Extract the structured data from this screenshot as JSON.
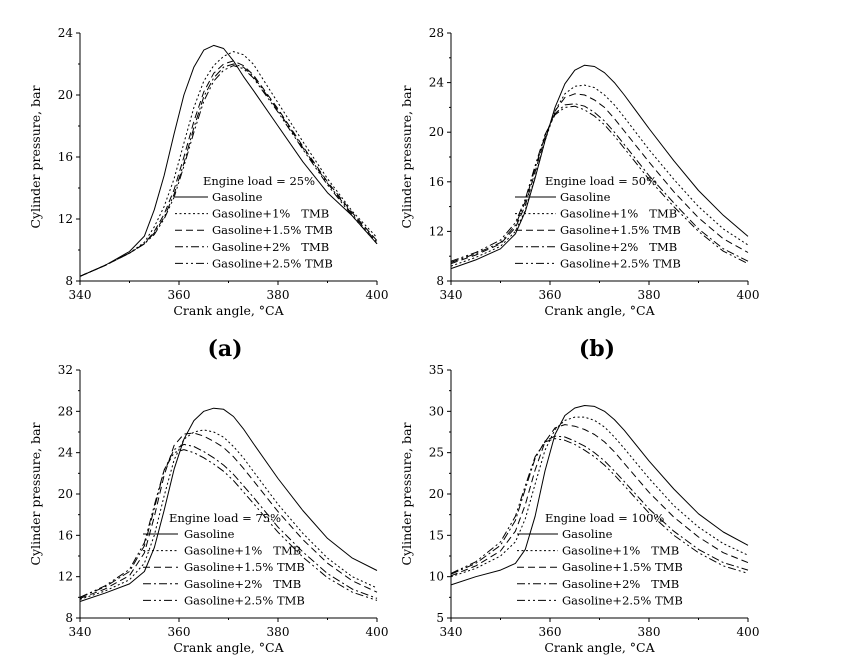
{
  "chart_data": [
    {
      "type": "line",
      "panel_label": "(a)",
      "xlabel": "Crank angle, °CA",
      "ylabel": "Cylinder pressure, bar",
      "xlim": [
        340,
        400
      ],
      "ylim": [
        8,
        24
      ],
      "xticks": [
        340,
        360,
        380,
        400
      ],
      "yticks": [
        8,
        12,
        16,
        20,
        24
      ],
      "legend_title": "Engine load = 25%",
      "legend_placement": "center",
      "grid": false,
      "series": [
        {
          "name": "Gasoline",
          "dash": "solid",
          "x": [
            340,
            345,
            350,
            353,
            355,
            357,
            359,
            361,
            363,
            365,
            367,
            369,
            371,
            373,
            375,
            380,
            385,
            390,
            395,
            400
          ],
          "y": [
            8.3,
            9.0,
            9.9,
            10.9,
            12.6,
            14.8,
            17.5,
            20.0,
            21.8,
            22.9,
            23.2,
            23.0,
            22.2,
            21.2,
            20.3,
            18.0,
            15.7,
            13.7,
            12.2,
            10.4
          ]
        },
        {
          "name": "Gasoline+1%   TMB",
          "dash": "dot",
          "x": [
            340,
            345,
            350,
            353,
            355,
            357,
            359,
            361,
            363,
            365,
            367,
            369,
            371,
            373,
            375,
            380,
            385,
            390,
            395,
            400
          ],
          "y": [
            8.3,
            9.0,
            9.8,
            10.5,
            11.5,
            12.8,
            14.6,
            16.9,
            19.2,
            20.9,
            21.9,
            22.5,
            22.8,
            22.6,
            22.0,
            19.5,
            17.0,
            14.6,
            12.5,
            10.8
          ]
        },
        {
          "name": "Gasoline+1.5% TMB",
          "dash": "dash",
          "x": [
            340,
            345,
            350,
            353,
            355,
            357,
            359,
            361,
            363,
            365,
            367,
            369,
            371,
            373,
            375,
            380,
            385,
            390,
            395,
            400
          ],
          "y": [
            8.3,
            9.0,
            9.8,
            10.4,
            11.2,
            12.3,
            13.9,
            16.0,
            18.3,
            20.2,
            21.4,
            22.0,
            22.2,
            21.9,
            21.3,
            19.1,
            16.7,
            14.4,
            12.4,
            10.6
          ]
        },
        {
          "name": "Gasoline+2%   TMB",
          "dash": "dashdot",
          "x": [
            340,
            345,
            350,
            353,
            355,
            357,
            359,
            361,
            363,
            365,
            367,
            369,
            371,
            373,
            375,
            380,
            385,
            390,
            395,
            400
          ],
          "y": [
            8.3,
            9.0,
            9.8,
            10.4,
            11.1,
            12.1,
            13.6,
            15.6,
            17.9,
            19.9,
            21.1,
            21.8,
            22.0,
            21.8,
            21.2,
            19.0,
            16.6,
            14.3,
            12.3,
            10.5
          ]
        },
        {
          "name": "Gasoline+2.5% TMB",
          "dash": "dashdotdot",
          "x": [
            340,
            345,
            350,
            353,
            355,
            357,
            359,
            361,
            363,
            365,
            367,
            369,
            371,
            373,
            375,
            380,
            385,
            390,
            395,
            400
          ],
          "y": [
            8.3,
            9.0,
            9.8,
            10.4,
            11.0,
            12.0,
            13.4,
            15.4,
            17.6,
            19.6,
            20.9,
            21.6,
            21.9,
            21.7,
            21.1,
            18.9,
            16.5,
            14.2,
            12.2,
            10.4
          ]
        }
      ]
    },
    {
      "type": "line",
      "panel_label": "(b)",
      "xlabel": "Crank angle, °CA",
      "ylabel": "Cylinder pressure, bar",
      "xlim": [
        340,
        400
      ],
      "ylim": [
        8,
        28
      ],
      "xticks": [
        340,
        360,
        380,
        400
      ],
      "yticks": [
        8,
        12,
        16,
        20,
        24,
        28
      ],
      "legend_title": "Engine load = 50%",
      "legend_placement": "center",
      "grid": false,
      "series": [
        {
          "name": "Gasoline",
          "dash": "solid",
          "x": [
            340,
            345,
            350,
            353,
            355,
            357,
            359,
            361,
            363,
            365,
            367,
            369,
            371,
            373,
            375,
            380,
            385,
            390,
            395,
            400
          ],
          "y": [
            9.0,
            9.7,
            10.6,
            11.8,
            13.6,
            16.3,
            19.3,
            22.0,
            23.9,
            25.0,
            25.4,
            25.3,
            24.8,
            24.0,
            23.0,
            20.3,
            17.7,
            15.3,
            13.3,
            11.6
          ]
        },
        {
          "name": "Gasoline+1%   TMB",
          "dash": "dot",
          "x": [
            340,
            345,
            350,
            353,
            355,
            357,
            359,
            361,
            363,
            365,
            367,
            369,
            371,
            373,
            375,
            380,
            385,
            390,
            395,
            400
          ],
          "y": [
            9.2,
            9.9,
            10.8,
            12.0,
            13.7,
            16.4,
            19.3,
            21.7,
            23.1,
            23.7,
            23.8,
            23.6,
            23.0,
            22.2,
            21.2,
            18.6,
            16.2,
            14.0,
            12.2,
            10.9
          ]
        },
        {
          "name": "Gasoline+1.5% TMB",
          "dash": "dash",
          "x": [
            340,
            345,
            350,
            353,
            355,
            357,
            359,
            361,
            363,
            365,
            367,
            369,
            371,
            373,
            375,
            380,
            385,
            390,
            395,
            400
          ],
          "y": [
            9.4,
            10.1,
            11.0,
            12.3,
            14.1,
            16.8,
            19.6,
            21.7,
            22.8,
            23.1,
            23.0,
            22.6,
            22.0,
            21.1,
            20.1,
            17.6,
            15.2,
            13.1,
            11.4,
            10.3
          ]
        },
        {
          "name": "Gasoline+2%   TMB",
          "dash": "dashdot",
          "x": [
            340,
            345,
            350,
            353,
            355,
            357,
            359,
            361,
            363,
            365,
            367,
            369,
            371,
            373,
            375,
            380,
            385,
            390,
            395,
            400
          ],
          "y": [
            9.5,
            10.2,
            11.1,
            12.5,
            14.4,
            17.1,
            19.7,
            21.5,
            22.2,
            22.3,
            22.1,
            21.6,
            20.9,
            20.0,
            19.0,
            16.5,
            14.3,
            12.2,
            10.6,
            9.6
          ]
        },
        {
          "name": "Gasoline+2.5% TMB",
          "dash": "dashdotdot",
          "x": [
            340,
            345,
            350,
            353,
            355,
            357,
            359,
            361,
            363,
            365,
            367,
            369,
            371,
            373,
            375,
            380,
            385,
            390,
            395,
            400
          ],
          "y": [
            9.6,
            10.3,
            11.3,
            12.7,
            14.6,
            17.3,
            19.8,
            21.4,
            22.0,
            22.1,
            21.8,
            21.3,
            20.6,
            19.7,
            18.7,
            16.2,
            14.0,
            12.0,
            10.4,
            9.4
          ]
        }
      ]
    },
    {
      "type": "line",
      "panel_label": "",
      "xlabel": "Crank angle, °CA",
      "ylabel": "Cylinder pressure, bar",
      "xlim": [
        340,
        400
      ],
      "ylim": [
        8,
        32
      ],
      "xticks": [
        340,
        360,
        380,
        400
      ],
      "yticks": [
        8,
        12,
        16,
        20,
        24,
        28,
        32
      ],
      "legend_title": "Engine load = 75%",
      "legend_placement": "center",
      "grid": false,
      "series": [
        {
          "name": "Gasoline",
          "dash": "solid",
          "x": [
            340,
            345,
            350,
            353,
            355,
            357,
            359,
            361,
            363,
            365,
            367,
            369,
            371,
            373,
            375,
            380,
            385,
            390,
            395,
            400
          ],
          "y": [
            9.6,
            10.4,
            11.3,
            12.5,
            14.8,
            18.4,
            22.4,
            25.3,
            27.1,
            28.0,
            28.3,
            28.2,
            27.5,
            26.3,
            24.9,
            21.5,
            18.4,
            15.7,
            13.8,
            12.6
          ]
        },
        {
          "name": "Gasoline+1%   TMB",
          "dash": "dot",
          "x": [
            340,
            345,
            350,
            353,
            355,
            357,
            359,
            361,
            363,
            365,
            367,
            369,
            371,
            373,
            375,
            380,
            385,
            390,
            395,
            400
          ],
          "y": [
            9.8,
            10.6,
            11.7,
            13.3,
            16.0,
            19.8,
            23.3,
            25.3,
            26.0,
            26.2,
            26.0,
            25.5,
            24.6,
            23.5,
            22.2,
            19.0,
            16.2,
            13.8,
            12.0,
            10.9
          ]
        },
        {
          "name": "Gasoline+1.5% TMB",
          "dash": "dash",
          "x": [
            340,
            345,
            350,
            353,
            355,
            357,
            359,
            361,
            363,
            365,
            367,
            369,
            371,
            373,
            375,
            380,
            385,
            390,
            395,
            400
          ],
          "y": [
            9.9,
            10.8,
            12.1,
            14.3,
            17.8,
            21.8,
            24.7,
            25.8,
            25.9,
            25.6,
            25.1,
            24.5,
            23.6,
            22.5,
            21.3,
            18.3,
            15.6,
            13.3,
            11.6,
            10.5
          ]
        },
        {
          "name": "Gasoline+2%   TMB",
          "dash": "dashdot",
          "x": [
            340,
            345,
            350,
            353,
            355,
            357,
            359,
            361,
            363,
            365,
            367,
            369,
            371,
            373,
            375,
            380,
            385,
            390,
            395,
            400
          ],
          "y": [
            10.0,
            11.0,
            12.5,
            15.0,
            18.6,
            22.3,
            24.3,
            24.8,
            24.6,
            24.1,
            23.5,
            22.8,
            21.9,
            20.8,
            19.7,
            16.8,
            14.4,
            12.3,
            10.8,
            9.9
          ]
        },
        {
          "name": "Gasoline+2.5% TMB",
          "dash": "dashdotdot",
          "x": [
            340,
            345,
            350,
            353,
            355,
            357,
            359,
            361,
            363,
            365,
            367,
            369,
            371,
            373,
            375,
            380,
            385,
            390,
            395,
            400
          ],
          "y": [
            10.0,
            11.1,
            12.7,
            15.3,
            18.9,
            22.3,
            24.0,
            24.3,
            24.0,
            23.5,
            22.9,
            22.2,
            21.3,
            20.2,
            19.1,
            16.3,
            13.9,
            11.9,
            10.5,
            9.7
          ]
        }
      ]
    },
    {
      "type": "line",
      "panel_label": "",
      "xlabel": "Crank angle, °CA",
      "ylabel": "Cylinder pressure, bar",
      "xlim": [
        340,
        400
      ],
      "ylim": [
        5,
        35
      ],
      "xticks": [
        340,
        360,
        380,
        400
      ],
      "yticks": [
        5,
        10,
        15,
        20,
        25,
        30,
        35
      ],
      "legend_title": "Engine load = 100%",
      "legend_placement": "center",
      "grid": false,
      "series": [
        {
          "name": "Gasoline",
          "dash": "solid",
          "x": [
            340,
            345,
            350,
            353,
            355,
            357,
            359,
            361,
            363,
            365,
            367,
            369,
            371,
            373,
            375,
            380,
            385,
            390,
            395,
            400
          ],
          "y": [
            9.0,
            10.0,
            10.8,
            11.6,
            13.3,
            17.3,
            22.8,
            27.2,
            29.5,
            30.4,
            30.7,
            30.6,
            30.0,
            29.0,
            27.7,
            24.0,
            20.6,
            17.6,
            15.4,
            13.8
          ]
        },
        {
          "name": "Gasoline+1%   TMB",
          "dash": "dot",
          "x": [
            340,
            345,
            350,
            353,
            355,
            357,
            359,
            361,
            363,
            365,
            367,
            369,
            371,
            373,
            375,
            380,
            385,
            390,
            395,
            400
          ],
          "y": [
            10.0,
            11.0,
            12.5,
            14.2,
            17.0,
            21.2,
            25.3,
            27.8,
            28.9,
            29.3,
            29.3,
            28.9,
            28.1,
            26.9,
            25.5,
            21.9,
            18.6,
            16.0,
            14.0,
            12.6
          ]
        },
        {
          "name": "Gasoline+1.5% TMB",
          "dash": "dash",
          "x": [
            340,
            345,
            350,
            353,
            355,
            357,
            359,
            361,
            363,
            365,
            367,
            369,
            371,
            373,
            375,
            380,
            385,
            390,
            395,
            400
          ],
          "y": [
            10.1,
            11.3,
            13.1,
            15.5,
            18.7,
            22.9,
            26.3,
            28.0,
            28.4,
            28.2,
            27.8,
            27.2,
            26.3,
            25.1,
            23.7,
            20.2,
            17.2,
            14.8,
            12.9,
            11.7
          ]
        },
        {
          "name": "Gasoline+2%   TMB",
          "dash": "dashdot",
          "x": [
            340,
            345,
            350,
            353,
            355,
            357,
            359,
            361,
            363,
            365,
            367,
            369,
            371,
            373,
            375,
            380,
            385,
            390,
            395,
            400
          ],
          "y": [
            10.3,
            11.6,
            13.8,
            16.8,
            20.6,
            24.3,
            26.4,
            27.0,
            26.9,
            26.4,
            25.8,
            25.0,
            24.0,
            22.8,
            21.5,
            18.2,
            15.5,
            13.3,
            11.7,
            10.8
          ]
        },
        {
          "name": "Gasoline+2.5% TMB",
          "dash": "dashdotdot",
          "x": [
            340,
            345,
            350,
            353,
            355,
            357,
            359,
            361,
            363,
            365,
            367,
            369,
            371,
            373,
            375,
            380,
            385,
            390,
            395,
            400
          ],
          "y": [
            10.4,
            11.8,
            14.2,
            17.3,
            21.0,
            24.5,
            26.3,
            26.7,
            26.5,
            26.0,
            25.3,
            24.5,
            23.5,
            22.3,
            21.0,
            17.7,
            15.0,
            12.9,
            11.3,
            10.4
          ]
        }
      ]
    }
  ]
}
